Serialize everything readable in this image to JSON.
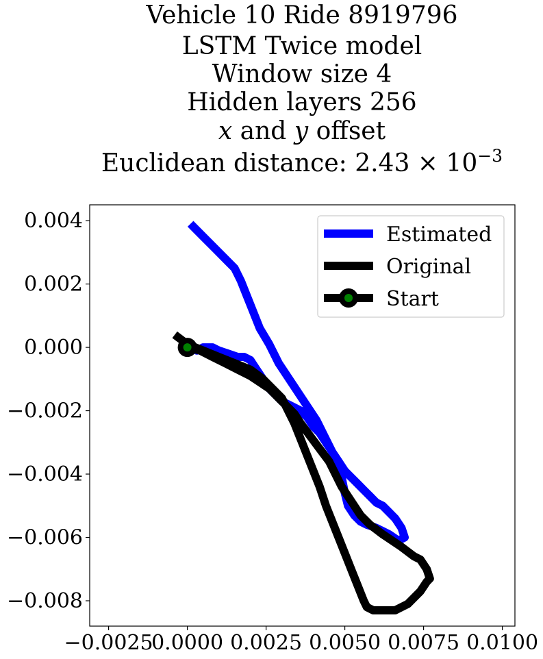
{
  "chart_data": {
    "type": "line",
    "title_lines": [
      {
        "parts": [
          {
            "t": "Vehicle 10 Ride 8919796",
            "s": "n"
          }
        ]
      },
      {
        "parts": [
          {
            "t": "LSTM Twice model",
            "s": "n"
          }
        ]
      },
      {
        "parts": [
          {
            "t": "Window size 4",
            "s": "n"
          }
        ]
      },
      {
        "parts": [
          {
            "t": "Hidden layers 256",
            "s": "n"
          }
        ]
      },
      {
        "parts": [
          {
            "t": "x",
            "s": "i"
          },
          {
            "t": " and ",
            "s": "n"
          },
          {
            "t": "y",
            "s": "i"
          },
          {
            "t": " offset",
            "s": "n"
          }
        ]
      },
      {
        "parts": [
          {
            "t": "Euclidean distance: 2.43",
            "s": "n"
          },
          {
            "t": " × 10",
            "s": "n"
          },
          {
            "t": "−3",
            "s": "sup"
          }
        ]
      }
    ],
    "xlabel": "",
    "ylabel": "",
    "xlim": [
      -0.0031,
      0.0104
    ],
    "ylim": [
      -0.0088,
      0.0045
    ],
    "x_ticks": [
      {
        "value": -0.0025,
        "label": "−0.0025"
      },
      {
        "value": 0.0,
        "label": "0.0000"
      },
      {
        "value": 0.0025,
        "label": "0.0025"
      },
      {
        "value": 0.005,
        "label": "0.0050"
      },
      {
        "value": 0.0075,
        "label": "0.0075"
      },
      {
        "value": 0.01,
        "label": "0.0100"
      }
    ],
    "y_ticks": [
      {
        "value": 0.004,
        "label": "0.004"
      },
      {
        "value": 0.002,
        "label": "0.002"
      },
      {
        "value": 0.0,
        "label": "0.000"
      },
      {
        "value": -0.002,
        "label": "−0.002"
      },
      {
        "value": -0.004,
        "label": "−0.004"
      },
      {
        "value": -0.006,
        "label": "−0.006"
      },
      {
        "value": -0.008,
        "label": "−0.008"
      }
    ],
    "grid": false,
    "legend_position": "top-right",
    "series": [
      {
        "name": "Estimated",
        "color": "#0000ff",
        "x": [
          0.0,
          0.0003,
          0.0005,
          0.0008,
          0.001,
          0.0013,
          0.0016,
          0.0018,
          0.002,
          0.0022,
          0.0024,
          0.0026,
          0.0028,
          0.003,
          0.0032,
          0.0034,
          0.0036,
          0.0038,
          0.004,
          0.0042,
          0.0044,
          0.0046,
          0.0048,
          0.005,
          0.0052,
          0.0054,
          0.0056,
          0.0058,
          0.006,
          0.0062,
          0.0064,
          0.0066,
          0.0068,
          0.0069,
          0.0067,
          0.0064,
          0.0062,
          0.006,
          0.0057,
          0.0055,
          0.0053,
          0.0051,
          0.005,
          0.0049,
          0.0047,
          0.0044,
          0.0041,
          0.0037,
          0.0033,
          0.0029,
          0.0026,
          0.0023,
          0.0021,
          0.0019,
          0.0017,
          0.0015,
          0.0012,
          0.0009,
          0.0006,
          0.0003,
          0.0001
        ],
        "y": [
          0.0,
          -0.0001,
          0.0,
          0.0,
          -0.0001,
          -0.0002,
          -0.0003,
          -0.0003,
          -0.0004,
          -0.0007,
          -0.001,
          -0.0013,
          -0.0015,
          -0.0017,
          -0.0018,
          -0.0019,
          -0.002,
          -0.0022,
          -0.0025,
          -0.0027,
          -0.003,
          -0.0033,
          -0.0036,
          -0.0039,
          -0.0041,
          -0.0043,
          -0.0045,
          -0.0047,
          -0.0049,
          -0.005,
          -0.0052,
          -0.0054,
          -0.0057,
          -0.006,
          -0.0061,
          -0.0059,
          -0.0058,
          -0.0057,
          -0.0056,
          -0.0055,
          -0.0053,
          -0.005,
          -0.0046,
          -0.0041,
          -0.0035,
          -0.0029,
          -0.0023,
          -0.0017,
          -0.0011,
          -0.0005,
          0.0001,
          0.0006,
          0.0011,
          0.0016,
          0.0021,
          0.0025,
          0.0028,
          0.0031,
          0.0034,
          0.0037,
          0.0039
        ]
      },
      {
        "name": "Original",
        "color": "#000000",
        "x": [
          -0.0004,
          0.0,
          0.0005,
          0.001,
          0.0015,
          0.002,
          0.0024,
          0.0027,
          0.003,
          0.0032,
          0.0034,
          0.0036,
          0.0038,
          0.004,
          0.0042,
          0.0044,
          0.0046,
          0.0048,
          0.005,
          0.0052,
          0.0054,
          0.0056,
          0.0057,
          0.0059,
          0.0062,
          0.0066,
          0.007,
          0.0074,
          0.0076,
          0.0077,
          0.0076,
          0.0074,
          0.0072,
          0.0068,
          0.0062,
          0.0058,
          0.0055,
          0.0053,
          0.0051,
          0.0049,
          0.0047,
          0.0045,
          0.0042,
          0.0039,
          0.0036,
          0.0034,
          0.0032,
          0.0029,
          0.0026,
          0.0023,
          0.002,
          0.0016,
          0.0012,
          0.0008,
          0.0004,
          0.0
        ],
        "y": [
          0.0004,
          0.0001,
          -0.0001,
          -0.0003,
          -0.0005,
          -0.0007,
          -0.001,
          -0.0013,
          -0.0016,
          -0.002,
          -0.0024,
          -0.0029,
          -0.0034,
          -0.0039,
          -0.0044,
          -0.005,
          -0.0055,
          -0.006,
          -0.0065,
          -0.007,
          -0.0075,
          -0.008,
          -0.0082,
          -0.0083,
          -0.0083,
          -0.0083,
          -0.0081,
          -0.0077,
          -0.0074,
          -0.0073,
          -0.007,
          -0.0067,
          -0.0066,
          -0.0063,
          -0.0059,
          -0.0056,
          -0.0053,
          -0.005,
          -0.0047,
          -0.0044,
          -0.004,
          -0.0036,
          -0.0032,
          -0.0028,
          -0.0024,
          -0.0021,
          -0.0019,
          -0.0016,
          -0.0013,
          -0.0011,
          -0.0009,
          -0.0007,
          -0.0005,
          -0.0003,
          -0.0001,
          0.0
        ]
      }
    ],
    "start": {
      "name": "Start",
      "x": 0.0,
      "y": 0.0,
      "marker_face": "#008000",
      "marker_edge": "#000000"
    }
  }
}
